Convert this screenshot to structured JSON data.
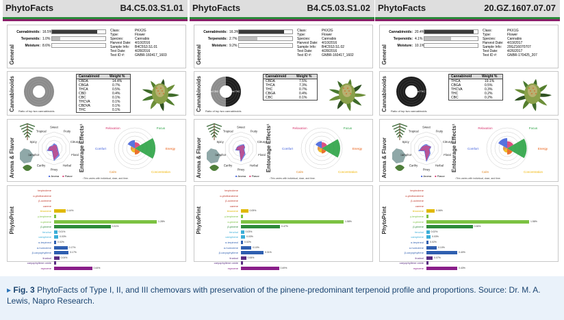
{
  "figure": {
    "panels": [
      {
        "brand": "PhytoFacts",
        "sample_id": "B4.C5.03.S1.01",
        "general": {
          "section_label": "General",
          "cannabinoids": {
            "label": "Cannabinoids:",
            "value": "16.5%",
            "level": 0.85
          },
          "terpenoids": {
            "label": "Terpenoids:",
            "value": "1.0%",
            "level": 0.15
          },
          "moisture": {
            "label": "Moisture:",
            "value": "8.6%",
            "level": 0.0
          },
          "info": [
            {
              "k": "Class:",
              "v": "PKX2G"
            },
            {
              "k": "Type:",
              "v": "Flower"
            },
            {
              "k": "Species:",
              "v": "Cannabis"
            },
            {
              "k": "Harvest Date:",
              "v": "4/10/2016"
            },
            {
              "k": "Sample Info:",
              "v": "B4C5S3.S1.01"
            },
            {
              "k": "Test Date:",
              "v": "4/28/2016"
            },
            {
              "k": "Test ID #:",
              "v": "GNBR-160417_1603"
            }
          ]
        },
        "cannabinoids": {
          "section_label": "Cannabinoids",
          "donut_caption": "Ratio of top two cannabinoids",
          "donut_dark_fraction": 0.0,
          "table_head": [
            "Cannabinoid",
            "Weight %"
          ],
          "rows": [
            [
              "CBDA",
              "14.4%"
            ],
            [
              "CBGA",
              "0.7%"
            ],
            [
              "THCA",
              "0.5%"
            ],
            [
              "CBD",
              "0.4%"
            ],
            [
              "CBC",
              "0.1%"
            ],
            [
              "THCVA",
              "0.1%"
            ],
            [
              "CBDVA",
              "0.1%"
            ],
            [
              "THC",
              "0.1%"
            ]
          ]
        },
        "aroma": {
          "section_label": "Aroma & Flavor",
          "entourage_label": "Entourage Effects¹",
          "legend": [
            "Aroma",
            "Flavor"
          ],
          "footnote": "¹This varies with individual, dose, and time.",
          "axes": [
            "Sweet",
            "Fruity",
            "Citrusy",
            "Floral",
            "Herbal",
            "Piney",
            "Earthy",
            "Camphor",
            "Spicy",
            "Tropical"
          ],
          "effects": [
            "Relaxation",
            "Focus",
            "Energy",
            "Concentration",
            "Calm",
            "Comfort"
          ]
        },
        "phyto": {
          "section_label": "PhytoPrint"
        }
      },
      {
        "brand": "PhytoFacts",
        "sample_id": "B4.C5.03.S1.02",
        "general": {
          "section_label": "General",
          "cannabinoids": {
            "label": "Cannabinoids:",
            "value": "16.3%",
            "level": 0.84
          },
          "terpenoids": {
            "label": "Terpenoids:",
            "value": "2.7%",
            "level": 0.35
          },
          "moisture": {
            "label": "Moisture:",
            "value": "9.2%",
            "level": 0.0
          },
          "info": [
            {
              "k": "Class:",
              "v": "PKX2G"
            },
            {
              "k": "Type:",
              "v": "Flower"
            },
            {
              "k": "Species:",
              "v": "Cannabis"
            },
            {
              "k": "Harvest Date:",
              "v": "4/10/2016"
            },
            {
              "k": "Sample Info:",
              "v": "B4C5S3.S1.02"
            },
            {
              "k": "Test Date:",
              "v": "4/28/2016"
            },
            {
              "k": "Test ID #:",
              "v": "GNBR-160417_1602"
            }
          ]
        },
        "cannabinoids": {
          "section_label": "Cannabinoids",
          "donut_caption": "Ratio of top two cannabinoids",
          "donut_dark_fraction": 0.5,
          "donut_left": "Total CBD 7.5",
          "donut_right": "Total THC 7.1",
          "table_head": [
            "Cannabinoid",
            "Weight %"
          ],
          "rows": [
            [
              "CBDA",
              "7.5%"
            ],
            [
              "THCA",
              "7.3%"
            ],
            [
              "THC",
              "0.7%"
            ],
            [
              "CBGA",
              "0.4%"
            ],
            [
              "CBC",
              "0.1%"
            ]
          ]
        },
        "aroma": {
          "section_label": "Aroma & Flavor",
          "entourage_label": "Entourage Effects¹",
          "legend": [
            "Aroma",
            "Flavor"
          ],
          "footnote": "¹This varies with individual, dose, and time.",
          "axes": [
            "Sweet",
            "Fruity",
            "Citrusy",
            "Floral",
            "Herbal",
            "Piney",
            "Earthy",
            "Camphor",
            "Spicy",
            "Tropical"
          ],
          "effects": [
            "Relaxation",
            "Focus",
            "Energy",
            "Concentration",
            "Calm",
            "Comfort"
          ]
        },
        "phyto": {
          "section_label": "PhytoPrint"
        }
      },
      {
        "brand": "PhytoFacts",
        "sample_id": "20.GZ.1607.07.07",
        "general": {
          "section_label": "General",
          "cannabinoids": {
            "label": "Cannabinoids:",
            "value": "20.4%",
            "level": 0.92
          },
          "terpenoids": {
            "label": "Terpenoids:",
            "value": "4.1%",
            "level": 0.5
          },
          "moisture": {
            "label": "Moisture:",
            "value": "10.1%",
            "level": 0.0
          },
          "info": [
            {
              "k": "Class:",
              "v": "PKX1G"
            },
            {
              "k": "Type:",
              "v": "Flower"
            },
            {
              "k": "Species:",
              "v": "Cannabis"
            },
            {
              "k": "Harvest Date:",
              "v": "4/19/2017"
            },
            {
              "k": "Sample Info:",
              "v": "20GZ16070707"
            },
            {
              "k": "Test Date:",
              "v": "4/26/2017"
            },
            {
              "k": "Test ID #:",
              "v": "GNBR-170425_207"
            }
          ]
        },
        "cannabinoids": {
          "section_label": "Cannabinoids",
          "donut_caption": "Ratio of top two cannabinoids",
          "donut_dark_fraction": 1.0,
          "donut_right": "Total THC 19.9",
          "table_head": [
            "Cannabinoid",
            "Weight %"
          ],
          "rows": [
            [
              "THCA",
              "19.1%"
            ],
            [
              "CBGA",
              "0.5%"
            ],
            [
              "THCVA",
              "0.3%"
            ],
            [
              "THC",
              "0.2%"
            ],
            [
              "CBC",
              "0.2%"
            ]
          ]
        },
        "aroma": {
          "section_label": "Aroma & Flavor",
          "entourage_label": "Entourage Effects¹",
          "legend": [
            "Aroma",
            "Flavor"
          ],
          "footnote": "¹This varies with individual, dose, and time.",
          "axes": [
            "Sweet",
            "Fruity",
            "Citrusy",
            "Floral",
            "Herbal",
            "Piney",
            "Earthy",
            "Camphor",
            "Spicy",
            "Tropical"
          ],
          "effects": [
            "Relaxation",
            "Focus",
            "Energy",
            "Concentration",
            "Calm",
            "Comfort"
          ]
        },
        "phyto": {
          "section_label": "PhytoPrint"
        }
      }
    ],
    "terpenes": [
      {
        "name": "terpinolene",
        "color": "#c0392b"
      },
      {
        "name": "α-phellandrene",
        "color": "#c0392b"
      },
      {
        "name": "β-ocimene",
        "color": "#c0392b"
      },
      {
        "name": "carene",
        "color": "#c0392b"
      },
      {
        "name": "limonene",
        "color": "#e0b800"
      },
      {
        "name": "γ-terpinene",
        "color": "#7cc242"
      },
      {
        "name": "α-pinene",
        "color": "#7cc242"
      },
      {
        "name": "β-pinene",
        "color": "#2e8b3a"
      },
      {
        "name": "fenchol",
        "color": "#3aaed8"
      },
      {
        "name": "camphene",
        "color": "#3aaed8"
      },
      {
        "name": "α-terpineol",
        "color": "#2f5fb0"
      },
      {
        "name": "α-humulene",
        "color": "#2f5fb0"
      },
      {
        "name": "β-caryophyllene",
        "color": "#2f5fb0"
      },
      {
        "name": "linalool",
        "color": "#5a2d82"
      },
      {
        "name": "caryophyllene oxide",
        "color": "#5a2d82"
      },
      {
        "name": "myrcene",
        "color": "#8a1f8a"
      }
    ],
    "terp_values": [
      [
        "",
        "",
        "",
        "",
        "0.14%",
        "",
        "1.28%",
        "0.31%",
        "0.01%",
        "0.03%",
        "0.02%",
        "0.17%",
        "0.17%",
        "0.04%",
        "",
        "0.44%"
      ],
      [
        "",
        "",
        "",
        "",
        "0.05%",
        "",
        "1.58%",
        "0.47%",
        "0.03%",
        "0.03%",
        "0.02%",
        "0.10%",
        "0.31%",
        "0.06%",
        "",
        "0.49%"
      ],
      [
        "",
        "",
        "",
        "",
        "0.06%",
        "",
        "1.58%",
        "0.06%",
        "0.02%",
        "0.03%",
        "0.02%",
        "0.10%",
        "0.40%",
        "0.07%",
        "",
        "0.43%"
      ]
    ],
    "terp_levels": [
      [
        0,
        0,
        0,
        0,
        0.11,
        0.02,
        1.0,
        0.55,
        0.03,
        0.04,
        0.02,
        0.13,
        0.14,
        0.05,
        0.02,
        0.37
      ],
      [
        0,
        0,
        0,
        0,
        0.07,
        0.02,
        1.0,
        0.38,
        0.03,
        0.04,
        0.02,
        0.1,
        0.22,
        0.05,
        0.02,
        0.37
      ],
      [
        0,
        0,
        0,
        0,
        0.08,
        0.02,
        1.0,
        0.45,
        0.03,
        0.04,
        0.02,
        0.1,
        0.3,
        0.06,
        0.02,
        0.3
      ]
    ],
    "colors": {
      "green_stripe": "#2a8a3a",
      "purple_stripe": "#8a1f6a",
      "aroma": "#3b5bdb",
      "flavor": "#d6336c",
      "focus": "#1f9d3a",
      "cannabinoid_bar": "#3a3a3a",
      "terpenoid_bar": "#bdbdbd"
    }
  },
  "caption": {
    "marker": "▸",
    "label": "Fig. 3",
    "text": "PhytoFacts of Type I, II, and III chemovars with preservation of the pinene-predominant terpenoid profile and proportions. Source: Dr. M. A. Lewis, Napro Research."
  }
}
